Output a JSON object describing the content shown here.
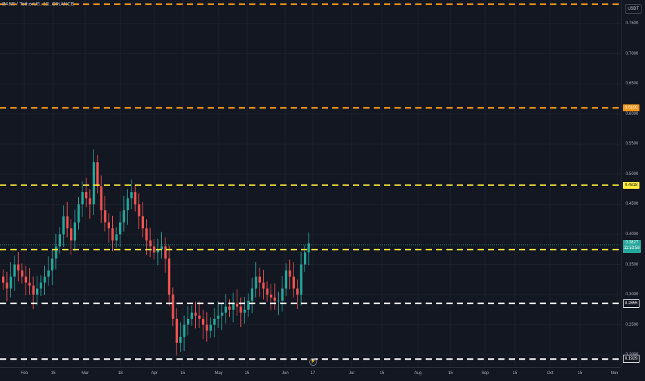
{
  "header": {
    "title": "BAKE / TetherUS, 1D, BINANCE",
    "currency_button": "USDT"
  },
  "price_axis": {
    "ticks": [
      "0.7500",
      "0.7000",
      "0.6500",
      "0.6000",
      "0.5500",
      "0.5000",
      "0.4500",
      "0.4000",
      "0.3500",
      "0.3000",
      "0.2500",
      "0.2000"
    ]
  },
  "time_axis": {
    "ticks": [
      "Feb",
      "15",
      "Mar",
      "18",
      "Apr",
      "15",
      "May",
      "15",
      "Jun",
      "17",
      "Jul",
      "15",
      "Aug",
      "15",
      "Sep",
      "15",
      "Oct",
      "15",
      "Nov"
    ]
  },
  "levels": [
    {
      "label": "",
      "price": 0.79,
      "color": "#f0951a"
    },
    {
      "label": "0.6100",
      "price": 0.61,
      "color": "#f0951a"
    },
    {
      "label": "0.4818",
      "price": 0.4818,
      "color": "#ffeb3b"
    },
    {
      "label": "0.3747",
      "price": 0.3747,
      "color": "#ffeb3b"
    },
    {
      "label": "0.2855",
      "price": 0.2855,
      "color": "#ffffff"
    },
    {
      "label": "0.1929",
      "price": 0.1929,
      "color": "#ffffff"
    }
  ],
  "current_price": {
    "price": "0.3827",
    "countdown": "11:53:58"
  },
  "flash_icon": "lightning-icon",
  "colors": {
    "up": "#26a69a",
    "down": "#ef5350",
    "background": "#131722",
    "grid": "#1e222d"
  },
  "chart_data": {
    "type": "candlestick",
    "symbol": "BAKE / TetherUS",
    "interval": "1D",
    "exchange": "BINANCE",
    "ylim": [
      0.19,
      0.8
    ],
    "current": 0.3827,
    "series": [
      {
        "name": "BAKE / TetherUS",
        "closes": [
          0.32,
          0.31,
          0.33,
          0.35,
          0.34,
          0.33,
          0.32,
          0.315,
          0.3,
          0.31,
          0.32,
          0.33,
          0.34,
          0.36,
          0.38,
          0.4,
          0.43,
          0.41,
          0.39,
          0.42,
          0.45,
          0.47,
          0.46,
          0.45,
          0.52,
          0.48,
          0.44,
          0.42,
          0.41,
          0.39,
          0.4,
          0.42,
          0.44,
          0.46,
          0.47,
          0.45,
          0.43,
          0.41,
          0.39,
          0.38,
          0.37,
          0.375,
          0.38,
          0.36,
          0.3,
          0.26,
          0.22,
          0.23,
          0.25,
          0.26,
          0.27,
          0.265,
          0.26,
          0.25,
          0.24,
          0.25,
          0.26,
          0.265,
          0.27,
          0.28,
          0.275,
          0.285,
          0.28,
          0.27,
          0.275,
          0.29,
          0.31,
          0.33,
          0.32,
          0.31,
          0.3,
          0.295,
          0.29,
          0.29,
          0.31,
          0.34,
          0.33,
          0.31,
          0.3,
          0.35,
          0.37,
          0.385
        ]
      }
    ]
  }
}
